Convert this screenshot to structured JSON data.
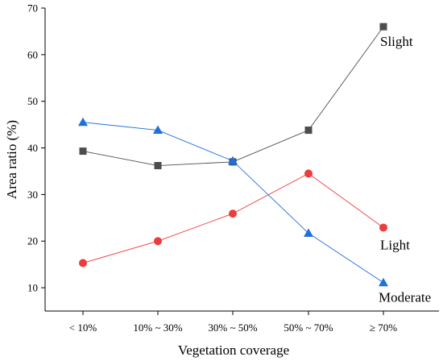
{
  "chart_data": {
    "type": "line",
    "xlabel": "Vegetation coverage",
    "ylabel": "Area ratio (%)",
    "ylim": [
      5,
      70
    ],
    "yticks": [
      10,
      20,
      30,
      40,
      50,
      60,
      70
    ],
    "categories": [
      "< 10%",
      "10% ~ 30%",
      "30% ~ 50%",
      "50% ~ 70%",
      "≥ 70%"
    ],
    "series": [
      {
        "name": "Slight",
        "values": [
          39.3,
          36.2,
          37.0,
          43.8,
          66.0
        ],
        "color": "#4d4d4d",
        "marker": "square"
      },
      {
        "name": "Light",
        "values": [
          15.3,
          20.0,
          25.9,
          34.5,
          22.9
        ],
        "color": "#ee3b3b",
        "marker": "circle"
      },
      {
        "name": "Moderate",
        "values": [
          45.5,
          43.8,
          37.2,
          21.7,
          11.1
        ],
        "color": "#1f6fdc",
        "marker": "triangle"
      }
    ],
    "grid": false,
    "legend": "inline"
  }
}
